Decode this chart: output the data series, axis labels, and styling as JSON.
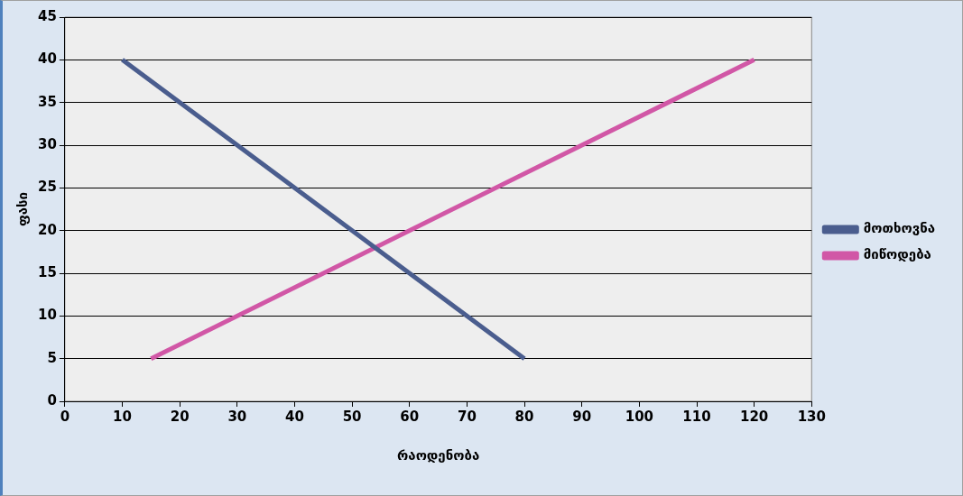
{
  "chart_data": {
    "type": "line",
    "xlabel": "რაოდენობა",
    "ylabel": "ფასი",
    "series": [
      {
        "name": "მოთხოვნა",
        "color": "#4a5d8e",
        "x": [
          10,
          80
        ],
        "values": [
          40,
          5
        ]
      },
      {
        "name": "მიწოდება",
        "color": "#d157a6",
        "x": [
          15,
          120
        ],
        "values": [
          5,
          40
        ]
      }
    ],
    "xlim": [
      0,
      130
    ],
    "xticks": [
      0,
      10,
      20,
      30,
      40,
      50,
      60,
      70,
      80,
      90,
      100,
      110,
      120,
      130
    ],
    "ylim": [
      0,
      45
    ],
    "yticks": [
      0,
      5,
      10,
      15,
      20,
      25,
      30,
      35,
      40,
      45
    ],
    "grid": "y",
    "legend": "right",
    "marker": "none",
    "line_style": "solid"
  }
}
